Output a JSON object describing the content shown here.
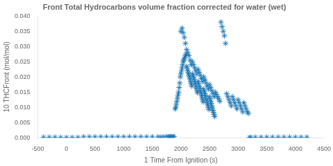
{
  "chart_data": {
    "type": "scatter",
    "title": "Front Total Hydrocarbons volume fraction corrected for water (wet)",
    "xlabel": "1 Time From Ignition (s)",
    "ylabel": "10 THCFront (mol/mol)",
    "xlim": [
      -500,
      4500
    ],
    "ylim": [
      0,
      0.04
    ],
    "xticks": [
      -500,
      0,
      500,
      1000,
      1500,
      2000,
      2500,
      3000,
      3500,
      4000,
      4500
    ],
    "yticks": [
      {
        "value": 0,
        "label": "0.000"
      },
      0.005,
      {
        "value": 0.01,
        "label": "0.010"
      },
      0.015,
      {
        "value": 0.02,
        "label": "0.020"
      },
      0.025,
      {
        "value": 0.03,
        "label": "0.030"
      },
      0.035,
      {
        "value": 0.04,
        "label": "0.040"
      }
    ],
    "color": "#1f77b4",
    "marker": "star",
    "grid": false,
    "x": [
      -400,
      -300,
      -200,
      -100,
      0,
      100,
      200,
      300,
      400,
      500,
      600,
      700,
      800,
      900,
      1000,
      1100,
      1200,
      1300,
      1400,
      1500,
      1600,
      1650,
      1700,
      1750,
      1780,
      1800,
      1820,
      1840,
      1860,
      1880,
      1900,
      1910,
      1920,
      1930,
      1940,
      1950,
      1960,
      1970,
      1980,
      1990,
      2000,
      2010,
      2020,
      2030,
      2040,
      2050,
      2060,
      2070,
      2080,
      2090,
      2000,
      2020,
      2040,
      2060,
      2080,
      2100,
      2110,
      2120,
      2130,
      2140,
      2150,
      2160,
      2170,
      2180,
      2190,
      2100,
      2120,
      2140,
      2160,
      2180,
      2200,
      2210,
      2220,
      2230,
      2240,
      2250,
      2260,
      2270,
      2280,
      2290,
      2200,
      2220,
      2240,
      2260,
      2280,
      2300,
      2310,
      2320,
      2330,
      2340,
      2350,
      2360,
      2370,
      2380,
      2390,
      2300,
      2320,
      2340,
      2360,
      2380,
      2400,
      2410,
      2420,
      2430,
      2440,
      2450,
      2460,
      2470,
      2480,
      2490,
      2400,
      2420,
      2440,
      2460,
      2480,
      2500,
      2510,
      2520,
      2530,
      2540,
      2550,
      2560,
      2570,
      2580,
      2590,
      2500,
      2520,
      2540,
      2560,
      2580,
      2600,
      2620,
      2640,
      2660,
      2680,
      2700,
      2720,
      2740,
      2760,
      2780,
      2800,
      2820,
      2840,
      2860,
      2880,
      2900,
      2920,
      2940,
      2960,
      2980,
      3000,
      3020,
      3040,
      3060,
      3080,
      3100,
      3120,
      3140,
      3160,
      3180,
      3200,
      3220,
      3300,
      3400,
      3500,
      3600,
      3700,
      3800,
      3900,
      4000,
      4100,
      4200
    ],
    "values": [
      0.0002,
      0.0002,
      0.0002,
      0.0001,
      0.0001,
      0.0001,
      0.0001,
      0.0003,
      0.0003,
      0.0003,
      0.0003,
      0.0003,
      0.0003,
      0.0003,
      0.0003,
      0.0003,
      0.0003,
      0.0003,
      0.0003,
      0.0003,
      0.0003,
      0.0002,
      0.0003,
      0.0004,
      0.0003,
      0.0003,
      0.0004,
      0.0003,
      0.0003,
      0.0004,
      0.0095,
      0.01,
      0.011,
      0.012,
      0.013,
      0.014,
      0.015,
      0.0165,
      0.018,
      0.02,
      0.021,
      0.022,
      0.023,
      0.024,
      0.025,
      0.0255,
      0.026,
      0.0265,
      0.027,
      0.0275,
      0.035,
      0.036,
      0.0345,
      0.033,
      0.031,
      0.0235,
      0.0228,
      0.022,
      0.0213,
      0.0205,
      0.02,
      0.0193,
      0.0185,
      0.0178,
      0.017,
      0.029,
      0.028,
      0.027,
      0.0255,
      0.024,
      0.021,
      0.0205,
      0.02,
      0.0193,
      0.0185,
      0.0178,
      0.017,
      0.0163,
      0.0155,
      0.0148,
      0.025,
      0.024,
      0.023,
      0.022,
      0.021,
      0.0185,
      0.0178,
      0.017,
      0.0163,
      0.0155,
      0.0148,
      0.014,
      0.0133,
      0.0125,
      0.0118,
      0.0225,
      0.0215,
      0.0205,
      0.0195,
      0.0185,
      0.016,
      0.0153,
      0.0145,
      0.0138,
      0.013,
      0.0123,
      0.0115,
      0.0108,
      0.01,
      0.0093,
      0.02,
      0.019,
      0.018,
      0.017,
      0.016,
      0.0135,
      0.0128,
      0.012,
      0.0113,
      0.0105,
      0.0098,
      0.009,
      0.0083,
      0.0076,
      0.007,
      0.0175,
      0.0165,
      0.0155,
      0.0145,
      0.0135,
      0.015,
      0.0143,
      0.0135,
      0.0128,
      0.012,
      0.038,
      0.0365,
      0.035,
      0.0335,
      0.031,
      0.0145,
      0.0135,
      0.0125,
      0.0115,
      0.0105,
      0.0135,
      0.0125,
      0.0115,
      0.0105,
      0.0095,
      0.0125,
      0.0115,
      0.0105,
      0.0095,
      0.0085,
      0.0115,
      0.0105,
      0.0095,
      0.0085,
      0.008,
      0.0001,
      0.0001,
      0.0002,
      0.0002,
      0.0002,
      0.0002,
      0.0002,
      0.0002,
      0.0002,
      0.0002,
      0.0002,
      0.0002
    ]
  }
}
